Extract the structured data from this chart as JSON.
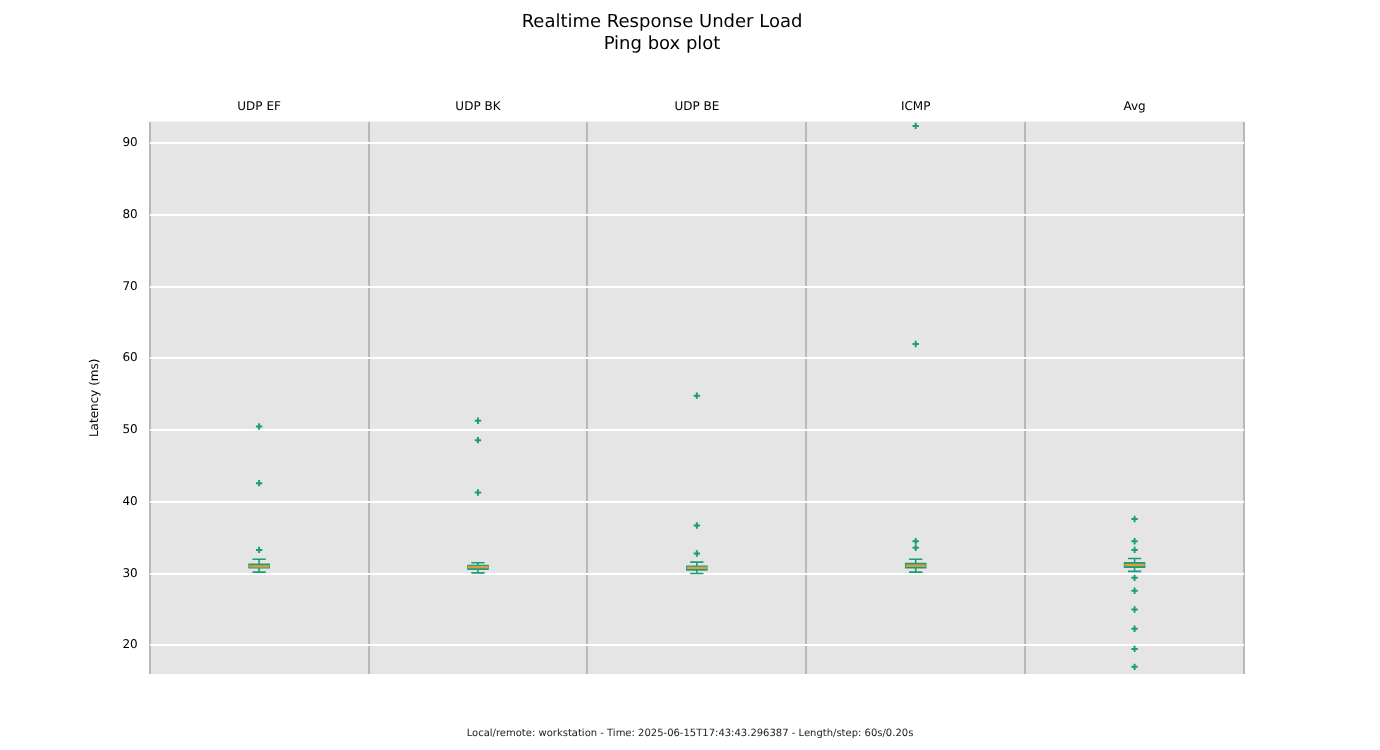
{
  "chart_data": {
    "type": "box",
    "title": "Realtime Response Under Load",
    "subtitle": "Ping box plot",
    "ylabel": "Latency (ms)",
    "categories": [
      "UDP EF",
      "UDP BK",
      "UDP BE",
      "ICMP",
      "Avg"
    ],
    "ylim": [
      16,
      93
    ],
    "yticks": [
      20,
      30,
      40,
      50,
      60,
      70,
      80,
      90
    ],
    "grid": true,
    "legend": false,
    "marker": "cross",
    "series": [
      {
        "color": "#1b9e77",
        "boxes": [
          {
            "low": 30.2,
            "q1": 30.8,
            "median": 31,
            "q3": 31.3,
            "high": 32,
            "outliers": [
              50.5,
              42.6,
              33.3
            ]
          },
          {
            "low": 30.1,
            "q1": 30.6,
            "median": 30.9,
            "q3": 31.1,
            "high": 31.5,
            "outliers": [
              51.3,
              48.6,
              41.3
            ]
          },
          {
            "low": 30,
            "q1": 30.5,
            "median": 30.8,
            "q3": 31,
            "high": 31.6,
            "outliers": [
              54.8,
              36.7,
              32.8
            ]
          },
          {
            "low": 30.2,
            "q1": 30.8,
            "median": 31.1,
            "q3": 31.4,
            "high": 32,
            "outliers": [
              92.4,
              62,
              34.5,
              33.6
            ]
          },
          {
            "low": 30.3,
            "q1": 30.9,
            "median": 31.2,
            "q3": 31.5,
            "high": 32.1,
            "outliers": [
              37.6,
              34.5,
              33.3,
              29.4,
              27.6,
              25,
              22.3,
              19.5,
              17
            ]
          }
        ]
      }
    ],
    "annotations": [
      "Local/remote: workstation - Time: 2025-06-15T17:43:43.296387 - Length/step: 60s/0.20s"
    ]
  }
}
